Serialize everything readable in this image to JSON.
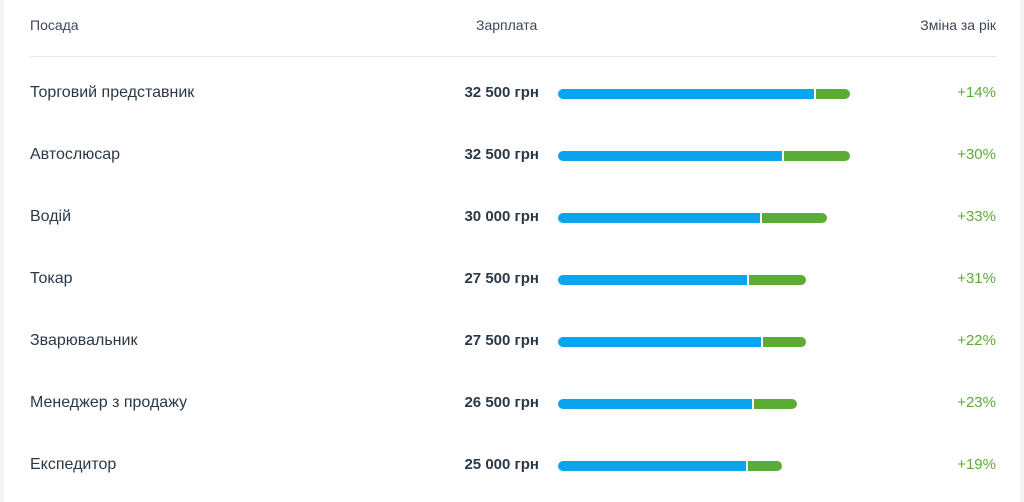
{
  "header": {
    "col_title": "Посада",
    "col_salary": "Зарплата",
    "col_change": "Зміна за рік"
  },
  "colors": {
    "base_bar": "#0ba4ee",
    "growth_bar": "#5aac35",
    "change_text": "#5aac35"
  },
  "rows": [
    {
      "title": "Торговий представник",
      "salary": "32 500 грн",
      "change": "+14%"
    },
    {
      "title": "Автослюсар",
      "salary": "32 500 грн",
      "change": "+30%"
    },
    {
      "title": "Водій",
      "salary": "30 000 грн",
      "change": "+33%"
    },
    {
      "title": "Токар",
      "salary": "27 500 грн",
      "change": "+31%"
    },
    {
      "title": "Зварювальник",
      "salary": "27 500 грн",
      "change": "+22%"
    },
    {
      "title": "Менеджер з продажу",
      "salary": "26 500 грн",
      "change": "+23%"
    },
    {
      "title": "Експедитор",
      "salary": "25 000 грн",
      "change": "+19%"
    }
  ]
}
